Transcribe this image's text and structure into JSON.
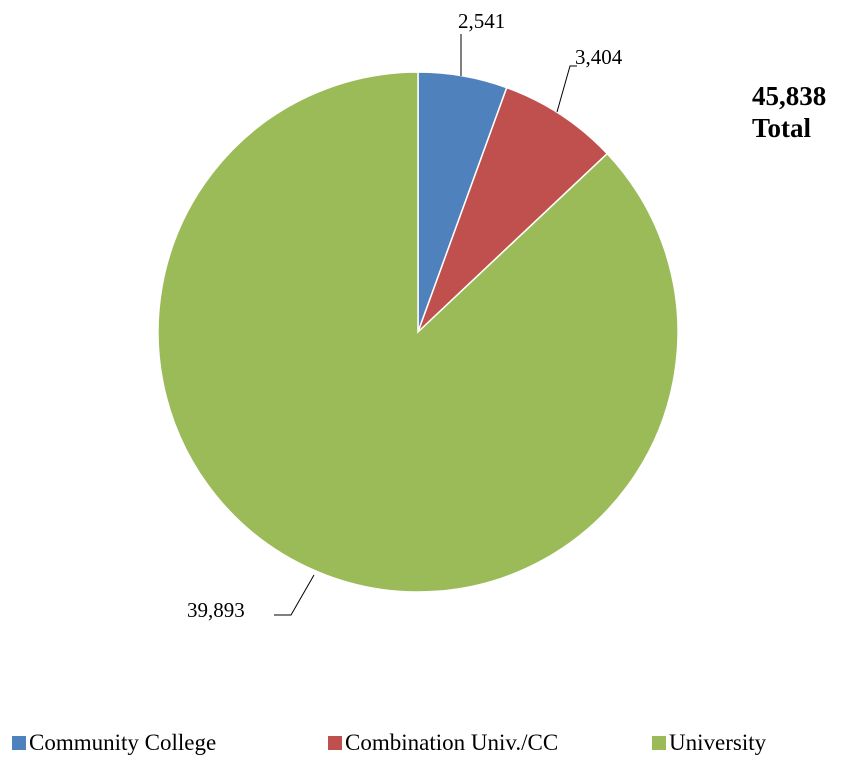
{
  "chart_data": {
    "type": "pie",
    "title": "",
    "categories": [
      "Community College",
      "Combination Univ./CC",
      "University"
    ],
    "values": [
      2541,
      3404,
      39893
    ],
    "value_labels": [
      "2,541",
      "3,404",
      "39,893"
    ],
    "colors": [
      "#4f81bd",
      "#c0504d",
      "#9bbb59"
    ],
    "total": {
      "value": "45,838",
      "label": "Total"
    },
    "legend": {
      "placement": "bottom",
      "entries": [
        "Community College",
        "Combination Univ./CC",
        "University"
      ]
    },
    "start_angle": "12 o'clock",
    "direction": "clockwise"
  }
}
